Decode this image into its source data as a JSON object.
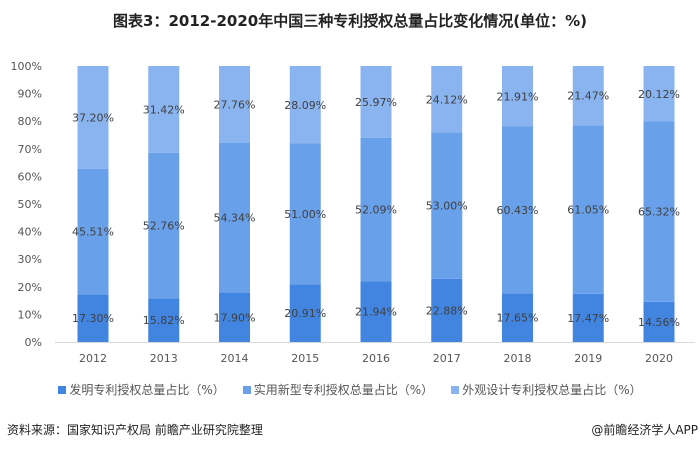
{
  "title": "图表3：2012-2020年中国三种专利授权总量占比变化情况(单位：%)",
  "chart_data": {
    "type": "bar",
    "stacked": true,
    "categories": [
      "2012",
      "2013",
      "2014",
      "2015",
      "2016",
      "2017",
      "2018",
      "2019",
      "2020"
    ],
    "series": [
      {
        "name": "发明专利授权总量占比（%）",
        "color": "#4285e0",
        "values": [
          17.3,
          15.82,
          17.9,
          20.91,
          21.94,
          22.88,
          17.65,
          17.47,
          14.56
        ],
        "labels": [
          "17.30%",
          "15.82%",
          "17.90%",
          "20.91%",
          "21.94%",
          "22.88%",
          "17.65%",
          "17.47%",
          "14.56%"
        ]
      },
      {
        "name": "实用新型专利授权总量占比（%）",
        "color": "#69a0ea",
        "values": [
          45.51,
          52.76,
          54.34,
          51.0,
          52.09,
          53.0,
          60.43,
          61.05,
          65.32
        ],
        "labels": [
          "45.51%",
          "52.76%",
          "54.34%",
          "51.00%",
          "52.09%",
          "53.00%",
          "60.43%",
          "61.05%",
          "65.32%"
        ]
      },
      {
        "name": "外观设计专利授权总量占比（%）",
        "color": "#8ab4f0",
        "values": [
          37.2,
          31.42,
          27.76,
          28.09,
          25.97,
          24.12,
          21.91,
          21.47,
          20.12
        ],
        "labels": [
          "37.20%",
          "31.42%",
          "27.76%",
          "28.09%",
          "25.97%",
          "24.12%",
          "21.91%",
          "21.47%",
          "20.12%"
        ]
      }
    ],
    "yticks": [
      "0%",
      "10%",
      "20%",
      "30%",
      "40%",
      "50%",
      "60%",
      "70%",
      "80%",
      "90%",
      "100%"
    ],
    "ylim": [
      0,
      100
    ],
    "grid": false,
    "legend": "bottom"
  },
  "source": "资料来源：国家知识产权局 前瞻产业研究院整理",
  "credit": "@前瞻经济学人APP"
}
